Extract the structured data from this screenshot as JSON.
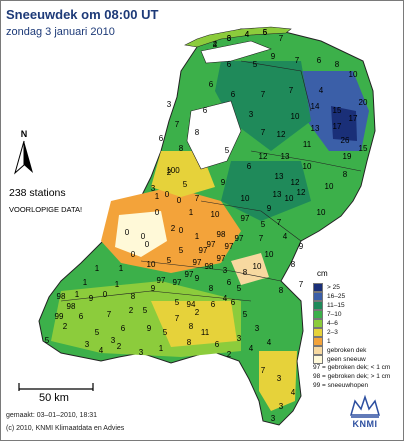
{
  "title": "Sneeuwdek om 08:00 UT",
  "subtitle": "zondag 3 januari 2010",
  "stations_text": "238 stations",
  "preliminary_text": "VOORLOPIGE DATA!",
  "north_label": "N",
  "scale_label": "50 km",
  "made_text": "gemaakt: 03–01–2010, 18:31",
  "copyright_text": "(c) 2010, KNMI Klimaatdata en Advies",
  "logo_text": "KNMI",
  "legend": {
    "unit": "cm",
    "items": [
      {
        "label": "> 25",
        "color": "#1a2f78"
      },
      {
        "label": "16–25",
        "color": "#3b5fa8"
      },
      {
        "label": "11–15",
        "color": "#1f8a5a"
      },
      {
        "label": "7–10",
        "color": "#3cb04a"
      },
      {
        "label": "4–6",
        "color": "#8ccc3c"
      },
      {
        "label": "2–3",
        "color": "#e6d23a"
      },
      {
        "label": "1",
        "color": "#f3a33a"
      },
      {
        "label": "gebroken dek",
        "color": "#f7d9a0"
      },
      {
        "label": "geen sneeuw",
        "color": "#fff9d8"
      }
    ],
    "notes": [
      "97 = gebroken dek; < 1 cm",
      "98 = gebroken dek; > 1 cm",
      "99 = sneeuwhopen"
    ]
  },
  "colors": {
    "sea": "#ffffff",
    "border": "#222222",
    "water": "#4a6fb0",
    "title": "#1d3a78"
  },
  "station_values": [
    "2",
    "3",
    "4",
    "6",
    "7",
    "6",
    "5",
    "9",
    "7",
    "6",
    "8",
    "10",
    "6",
    "6",
    "7",
    "7",
    "4",
    "6",
    "3",
    "14",
    "15",
    "13",
    "17",
    "17",
    "20",
    "10",
    "26",
    "15",
    "19",
    "11",
    "12",
    "7",
    "5",
    "6",
    "12",
    "13",
    "13",
    "10",
    "10",
    "8",
    "10",
    "9",
    "10",
    "10",
    "12",
    "13",
    "9",
    "12",
    "3",
    "7",
    "8",
    "100",
    "8",
    "6",
    "5",
    "7",
    "10",
    "3",
    "2",
    "1",
    "0",
    "0",
    "0",
    "0",
    "0",
    "0",
    "1",
    "2",
    "1",
    "97",
    "97",
    "98",
    "0",
    "0",
    "97",
    "97",
    "7",
    "5",
    "4",
    "7",
    "9",
    "8",
    "7",
    "8",
    "10",
    "10",
    "8",
    "6",
    "3",
    "5",
    "4",
    "6",
    "2",
    "98",
    "99",
    "98",
    "2",
    "5",
    "6",
    "9",
    "5",
    "7",
    "6",
    "8",
    "5",
    "9",
    "5",
    "9",
    "94",
    "8",
    "6",
    "5",
    "3",
    "4",
    "4",
    "7",
    "3",
    "4",
    "3",
    "3",
    "9",
    "5",
    "7",
    "8",
    "8",
    "11",
    "6",
    "2",
    "3",
    "1",
    "3",
    "10",
    "5",
    "5",
    "97",
    "98",
    "97",
    "97",
    "97",
    "97",
    "97",
    "1",
    "1",
    "0",
    "1",
    "1",
    "1",
    "2",
    "3",
    "3",
    "2",
    "4",
    "4",
    "6",
    "4",
    "5"
  ]
}
